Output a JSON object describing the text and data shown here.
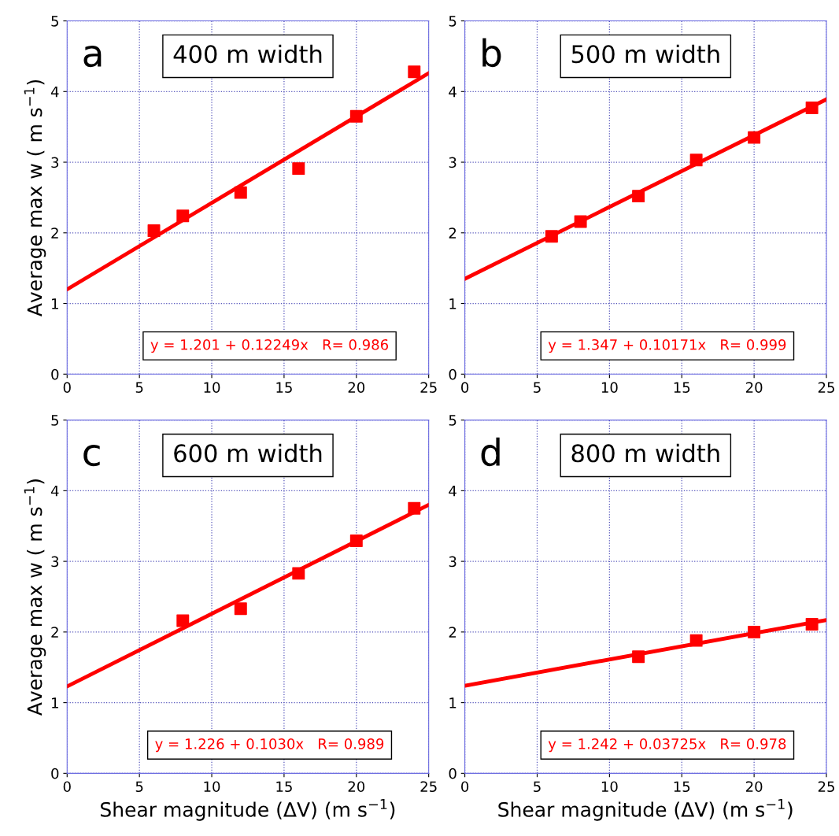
{
  "chart_data": [
    {
      "type": "scatter",
      "title": "400 m width",
      "ylabel": "Average max w ( m s$^{−1}$)",
      "xlim": [
        0,
        25
      ],
      "ylim": [
        0,
        5
      ],
      "xticks": [
        0,
        5,
        10,
        15,
        20,
        25
      ],
      "yticks": [
        0,
        1,
        2,
        3,
        4,
        5
      ],
      "grid": true,
      "legend": false,
      "annotations": [
        "a",
        "y = 1.201 + 0.12249x   R= 0.986"
      ],
      "series": [
        {
          "marker": "square",
          "color": "#ff0000",
          "x": [
            6,
            8,
            12,
            16,
            20,
            24
          ],
          "values": [
            2.03,
            2.24,
            2.57,
            2.91,
            3.65,
            4.28
          ]
        },
        {
          "type": "line",
          "marker": "none",
          "color": "#ff0000",
          "x": [
            0,
            25
          ],
          "values": [
            1.2,
            4.26
          ]
        }
      ]
    },
    {
      "type": "scatter",
      "title": "500 m width",
      "xlim": [
        0,
        25
      ],
      "ylim": [
        0,
        5
      ],
      "xticks": [
        0,
        5,
        10,
        15,
        20,
        25
      ],
      "yticks": [
        0,
        1,
        2,
        3,
        4,
        5
      ],
      "grid": true,
      "legend": false,
      "annotations": [
        "b",
        "y = 1.347 + 0.10171x   R= 0.999"
      ],
      "series": [
        {
          "marker": "square",
          "color": "#ff0000",
          "x": [
            6,
            8,
            12,
            16,
            20,
            24
          ],
          "values": [
            1.95,
            2.16,
            2.52,
            3.03,
            3.35,
            3.77
          ]
        },
        {
          "type": "line",
          "marker": "none",
          "color": "#ff0000",
          "x": [
            0,
            25
          ],
          "values": [
            1.35,
            3.89
          ]
        }
      ]
    },
    {
      "type": "scatter",
      "title": "600 m width",
      "xlabel": "Shear magnitude (ΔV) (m s$^{−1}$)",
      "ylabel": "Average max w ( m s$^{−1}$)",
      "xlim": [
        0,
        25
      ],
      "ylim": [
        0,
        5
      ],
      "xticks": [
        0,
        5,
        10,
        15,
        20,
        25
      ],
      "yticks": [
        0,
        1,
        2,
        3,
        4,
        5
      ],
      "grid": true,
      "legend": false,
      "annotations": [
        "c",
        "y = 1.226 + 0.1030x   R= 0.989"
      ],
      "series": [
        {
          "marker": "square",
          "color": "#ff0000",
          "x": [
            8,
            12,
            16,
            20,
            24
          ],
          "values": [
            2.16,
            2.33,
            2.83,
            3.29,
            3.75
          ]
        },
        {
          "type": "line",
          "marker": "none",
          "color": "#ff0000",
          "x": [
            0,
            25
          ],
          "values": [
            1.23,
            3.8
          ]
        }
      ]
    },
    {
      "type": "scatter",
      "title": "800 m width",
      "xlabel": "Shear magnitude (ΔV) (m s$^{−1}$)",
      "xlim": [
        0,
        25
      ],
      "ylim": [
        0,
        5
      ],
      "xticks": [
        0,
        5,
        10,
        15,
        20,
        25
      ],
      "yticks": [
        0,
        1,
        2,
        3,
        4,
        5
      ],
      "grid": true,
      "legend": false,
      "annotations": [
        "d",
        "y = 1.242 + 0.03725x   R= 0.978"
      ],
      "series": [
        {
          "marker": "square",
          "color": "#ff0000",
          "x": [
            12,
            16,
            20,
            24
          ],
          "values": [
            1.65,
            1.88,
            2.0,
            2.11
          ]
        },
        {
          "type": "line",
          "marker": "none",
          "color": "#ff0000",
          "x": [
            0,
            25
          ],
          "values": [
            1.24,
            2.17
          ]
        }
      ]
    }
  ]
}
